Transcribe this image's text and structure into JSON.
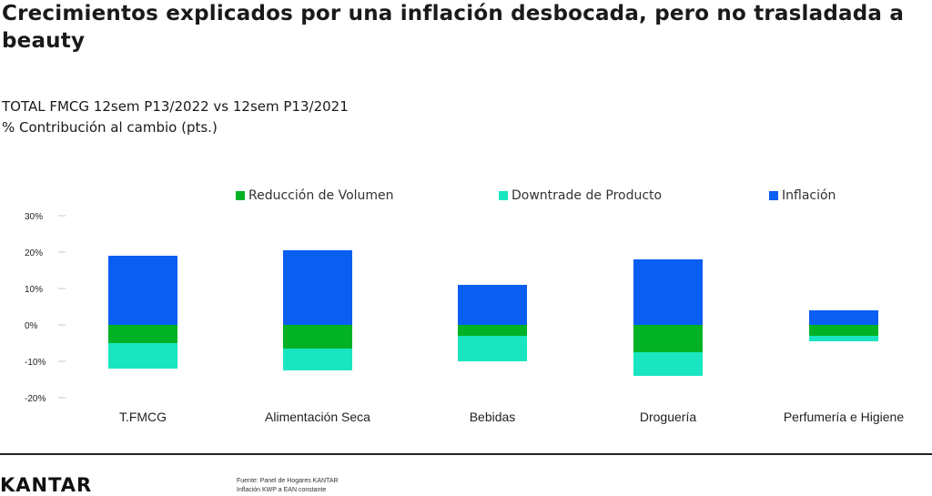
{
  "header": {
    "title": "Crecimientos explicados por una inflación desbocada, pero no trasladada a beauty",
    "subtitle_line1": "TOTAL FMCG 12sem P13/2022 vs 12sem P13/2021",
    "subtitle_line2": "% Contribución al cambio (pts.)"
  },
  "footer": {
    "logo_text": "KANTAR",
    "source_line1": "Fuente: Panel de Hogares KANTAR",
    "source_line2": "Inflación KWP a EAN constante"
  },
  "chart_data": {
    "type": "bar",
    "stacked": true,
    "categories": [
      "T.FMCG",
      "Alimentación Seca",
      "Bebidas",
      "Droguería",
      "Perfumería e Higiene"
    ],
    "series": [
      {
        "name": "Reducción de Volumen",
        "color": "#00b224",
        "values": [
          -5,
          -6.5,
          -3,
          -7.5,
          -3
        ]
      },
      {
        "name": "Downtrade de Producto",
        "color": "#19e6c1",
        "values": [
          -7,
          -6,
          -7,
          -6.5,
          -1.5
        ]
      },
      {
        "name": "Inflación",
        "color": "#0a5ef2",
        "values": [
          19,
          20.5,
          11,
          18,
          4
        ]
      }
    ],
    "ylim": [
      -20,
      30
    ],
    "yticks": [
      30,
      20,
      10,
      0,
      -10,
      -20
    ],
    "ytick_labels": [
      "30%",
      "20%",
      "10%",
      "0%",
      "-10%",
      "-20%"
    ],
    "grid": false,
    "legend_position": "top"
  }
}
